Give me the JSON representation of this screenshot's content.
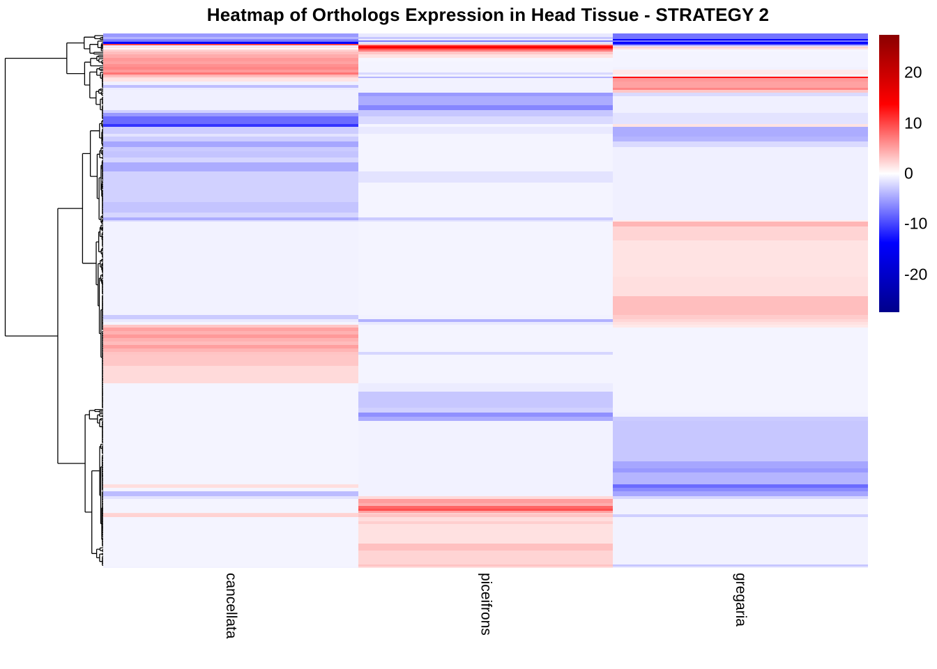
{
  "title": "Heatmap of Orthologs Expression in Head Tissue - STRATEGY 2",
  "chart_data": {
    "type": "heatmap",
    "title": "Heatmap of Orthologs Expression in Head Tissue - STRATEGY 2",
    "columns": [
      "cancellata",
      "piceifrons",
      "gregaria"
    ],
    "row_dendrogram": true,
    "legend": {
      "ticks": [
        20,
        10,
        0,
        -10,
        -20
      ],
      "vmin": -27.5,
      "vmax": 27.5,
      "palette": [
        "#00008B",
        "#0000FF",
        "#FFFFFF",
        "#FF0000",
        "#8B0000"
      ]
    },
    "rows_format": "each row band = [height_px, cancellata_value, piceifrons_value, gregaria_value] on the colorbar scale",
    "rows": [
      [
        5,
        -5.5,
        -1.2,
        -7.5
      ],
      [
        3,
        -4,
        -3,
        -7.5
      ],
      [
        2,
        -6.5,
        -1,
        -13.5
      ],
      [
        2,
        -7.5,
        -7,
        -7
      ],
      [
        3,
        -14,
        -1.5,
        -14
      ],
      [
        2,
        10,
        4,
        -9
      ],
      [
        2,
        -1,
        12.5,
        -2
      ],
      [
        2,
        1.5,
        14.5,
        2.5
      ],
      [
        2,
        0.5,
        11,
        1.5
      ],
      [
        3,
        2.5,
        7,
        -0.5
      ],
      [
        4,
        3.5,
        3,
        -0.6
      ],
      [
        5,
        4.5,
        1.5,
        -0.6
      ],
      [
        5,
        5.5,
        -0.5,
        -0.6
      ],
      [
        4,
        5,
        -0.6,
        -0.6
      ],
      [
        4,
        6,
        -0.6,
        -0.6
      ],
      [
        4,
        6.5,
        -0.6,
        -0.7
      ],
      [
        4,
        5.5,
        -0.6,
        1.2
      ],
      [
        3,
        7.5,
        -2,
        1.2
      ],
      [
        3,
        4,
        -0.7,
        -0.5
      ],
      [
        2,
        2.5,
        -4,
        13
      ],
      [
        5,
        1.5,
        -0.7,
        5.5
      ],
      [
        5,
        -0.8,
        -0.7,
        5
      ],
      [
        4,
        -3.5,
        -0.7,
        5
      ],
      [
        3,
        -1,
        -0.7,
        6.5
      ],
      [
        4,
        -0.8,
        -0.8,
        3
      ],
      [
        5,
        -0.8,
        -5.5,
        -2
      ],
      [
        13,
        -0.8,
        -4.5,
        -0.8
      ],
      [
        7,
        -0.8,
        -6.5,
        -0.8
      ],
      [
        4,
        -2.5,
        -3,
        -0.8
      ],
      [
        5,
        -5.5,
        -3,
        -1.5
      ],
      [
        11,
        -8,
        -2,
        -1.5
      ],
      [
        4,
        -11,
        -0.6,
        1.5
      ],
      [
        10,
        -2.7,
        -1.2,
        -4.5
      ],
      [
        4,
        -1.5,
        -0.6,
        -4.5
      ],
      [
        7,
        -2.7,
        -0.6,
        -4
      ],
      [
        8,
        -4.8,
        -0.6,
        -2
      ],
      [
        6,
        -2.8,
        -0.6,
        -0.8
      ],
      [
        9,
        -3.2,
        -0.6,
        -0.8
      ],
      [
        7,
        -2.2,
        -0.6,
        -0.8
      ],
      [
        13,
        -4.5,
        -0.6,
        -0.8
      ],
      [
        16,
        -2.5,
        -1.5,
        -0.8
      ],
      [
        28,
        -2.5,
        -0.6,
        -0.8
      ],
      [
        15,
        -3.2,
        -0.6,
        -0.8
      ],
      [
        7,
        -2.2,
        -0.6,
        -0.8
      ],
      [
        4,
        -4.5,
        -2.8,
        -0.8
      ],
      [
        2,
        -2,
        -1.5,
        1
      ],
      [
        7,
        -0.7,
        -0.6,
        4
      ],
      [
        20,
        -0.7,
        -0.6,
        2.3
      ],
      [
        52,
        -0.7,
        -0.6,
        1.5
      ],
      [
        28,
        -0.7,
        -0.6,
        1.7
      ],
      [
        27,
        -0.7,
        -0.6,
        3.5
      ],
      [
        6,
        -2.8,
        -0.7,
        2.8
      ],
      [
        4,
        -1.2,
        -4.2,
        2.2
      ],
      [
        4,
        -0.6,
        -1.2,
        1.6
      ],
      [
        4,
        3,
        -0.6,
        1.2
      ],
      [
        5,
        5,
        -0.6,
        -0.6
      ],
      [
        5,
        4.2,
        -0.6,
        -0.6
      ],
      [
        5,
        5.5,
        -0.6,
        -0.6
      ],
      [
        5,
        4.2,
        -0.6,
        -0.6
      ],
      [
        5,
        3.6,
        -0.6,
        -0.6
      ],
      [
        5,
        5.2,
        -0.6,
        -0.6
      ],
      [
        5,
        4,
        -0.6,
        -0.6
      ],
      [
        4,
        3.2,
        -2.2,
        -0.6
      ],
      [
        16,
        3,
        -0.6,
        -0.6
      ],
      [
        25,
        2,
        -0.6,
        -0.6
      ],
      [
        12,
        -0.6,
        -1,
        -0.6
      ],
      [
        23,
        -0.6,
        -3,
        -0.6
      ],
      [
        7,
        -0.6,
        -2.5,
        -0.6
      ],
      [
        6,
        -0.6,
        -6,
        -0.7
      ],
      [
        6,
        -0.6,
        -4.5,
        -2.8
      ],
      [
        58,
        -0.6,
        -0.7,
        -3
      ],
      [
        10,
        -0.6,
        -0.7,
        -4.8
      ],
      [
        6,
        -0.6,
        -0.7,
        -5.5
      ],
      [
        17,
        -0.6,
        -0.7,
        -4
      ],
      [
        5,
        1.8,
        -0.7,
        -8
      ],
      [
        5,
        -0.6,
        -0.7,
        -6.3
      ],
      [
        7,
        -3.6,
        -0.7,
        -4.8
      ],
      [
        4,
        -1.5,
        2,
        -2.2
      ],
      [
        6,
        -0.6,
        5.3,
        -0.7
      ],
      [
        4,
        -0.6,
        4.4,
        -0.7
      ],
      [
        4,
        -0.6,
        8.3,
        -0.7
      ],
      [
        3,
        -0.6,
        9.5,
        -0.7
      ],
      [
        3,
        -0.6,
        5,
        -0.7
      ],
      [
        2,
        2.2,
        2.6,
        -0.7
      ],
      [
        4,
        2.4,
        3.2,
        -2.6
      ],
      [
        6,
        -0.6,
        1.8,
        -0.7
      ],
      [
        4,
        -0.6,
        2.6,
        -0.7
      ],
      [
        28,
        -0.6,
        1.6,
        -0.7
      ],
      [
        10,
        -0.6,
        3.4,
        -0.7
      ],
      [
        20,
        -0.6,
        2.3,
        -0.7
      ],
      [
        3,
        -0.6,
        3.2,
        -3
      ],
      [
        2,
        -0.7,
        1.8,
        -1
      ]
    ]
  }
}
